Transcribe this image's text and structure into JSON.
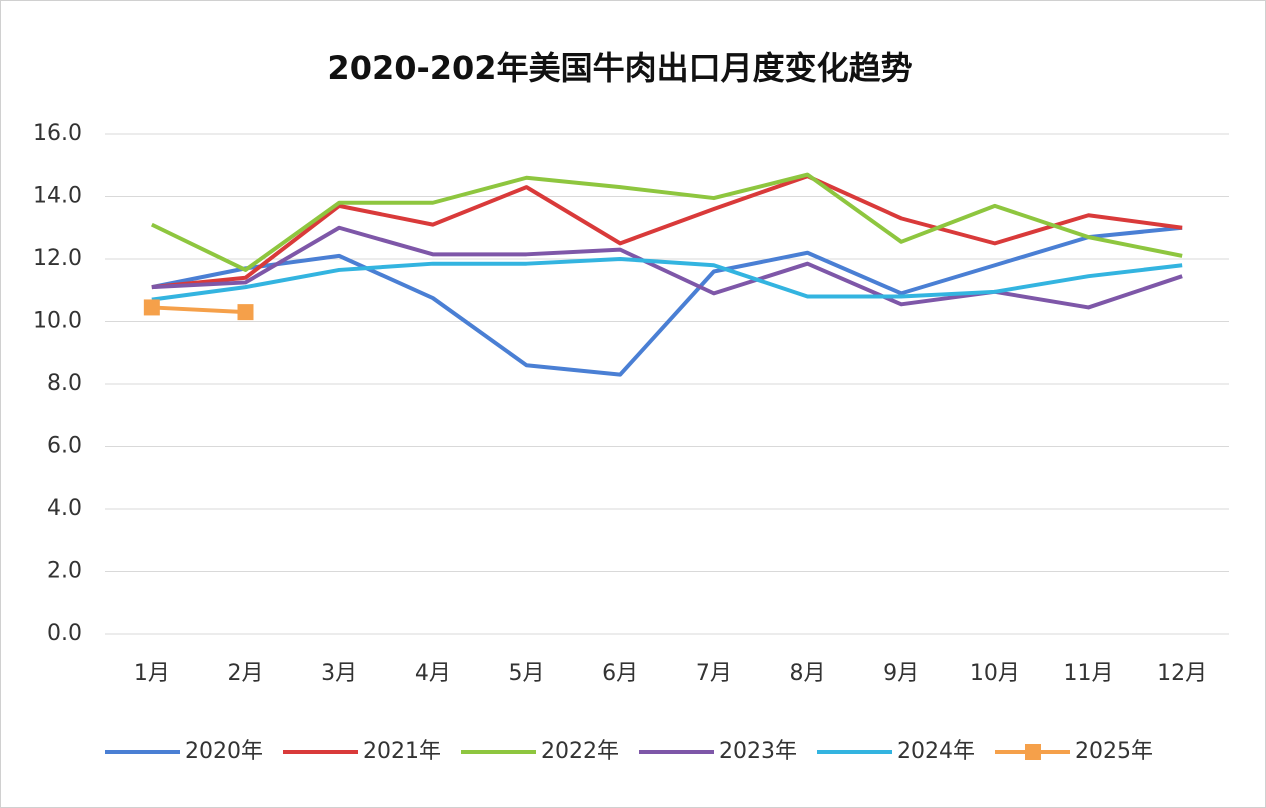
{
  "chart_data": {
    "type": "line",
    "title": "2020-202年美国牛肉出口月度变化趋势",
    "categories": [
      "1月",
      "2月",
      "3月",
      "4月",
      "5月",
      "6月",
      "7月",
      "8月",
      "9月",
      "10月",
      "11月",
      "12月"
    ],
    "ylim": [
      0,
      16
    ],
    "yticks": [
      {
        "value": 0,
        "label": "0.0"
      },
      {
        "value": 2,
        "label": "2.0"
      },
      {
        "value": 4,
        "label": "4.0"
      },
      {
        "value": 6,
        "label": "6.0"
      },
      {
        "value": 8,
        "label": "8.0"
      },
      {
        "value": 10,
        "label": "10.0"
      },
      {
        "value": 12,
        "label": "12.0"
      },
      {
        "value": 14,
        "label": "14.0"
      },
      {
        "value": 16,
        "label": "16.0"
      }
    ],
    "grid": true,
    "legend": "bottom",
    "series": [
      {
        "name": "2020年",
        "color": "#4a7fd4",
        "values": [
          11.1,
          11.7,
          12.1,
          10.75,
          8.6,
          8.3,
          11.6,
          12.2,
          10.9,
          11.8,
          12.7,
          13.0
        ]
      },
      {
        "name": "2021年",
        "color": "#d93a3a",
        "values": [
          11.1,
          11.4,
          13.7,
          13.1,
          14.3,
          12.5,
          13.6,
          14.65,
          13.3,
          12.5,
          13.4,
          13.0
        ]
      },
      {
        "name": "2022年",
        "color": "#8ec63f",
        "values": [
          13.1,
          11.65,
          13.8,
          13.8,
          14.6,
          14.3,
          13.95,
          14.7,
          12.55,
          13.7,
          12.7,
          12.1
        ]
      },
      {
        "name": "2023年",
        "color": "#7e57a8",
        "values": [
          11.1,
          11.25,
          13.0,
          12.15,
          12.15,
          12.3,
          10.9,
          11.85,
          10.55,
          10.95,
          10.45,
          11.45
        ]
      },
      {
        "name": "2024年",
        "color": "#33b4e0",
        "values": [
          10.7,
          11.1,
          11.65,
          11.85,
          11.85,
          12.0,
          11.8,
          10.8,
          10.8,
          10.95,
          11.45,
          11.8
        ]
      },
      {
        "name": "2025年",
        "color": "#f5a04a",
        "marker": "square",
        "values": [
          10.45,
          10.3,
          null,
          null,
          null,
          null,
          null,
          null,
          null,
          null,
          null,
          null
        ]
      }
    ]
  }
}
